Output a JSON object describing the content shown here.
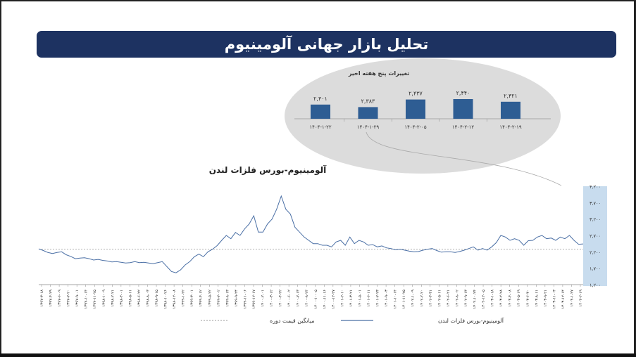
{
  "banner": {
    "title": "تحلیل بازار جهانی آلومینیوم"
  },
  "inset_title": "تغییرات پنج هفته اخیر",
  "chart_title": "آلومینیوم-بورس فلزات لندن",
  "legend": {
    "series_label": "آلومینیوم-بورس فلزات لندن",
    "average_label": "میانگین قیمت دوره"
  },
  "colors": {
    "banner": "#1d3261",
    "line": "#4a6fa5",
    "bar": "#2e5d93",
    "inset_bg": "#dcdcdc",
    "axis_band": "#c8dcee"
  },
  "chart_data": [
    {
      "type": "bar",
      "title": "تغییرات پنج هفته اخیر",
      "categories": [
        "۱۴۰۴-۱-۲۲",
        "۱۴۰۴-۱-۲۹",
        "۱۴۰۴-۲-۰۵",
        "۱۴۰۴-۲-۱۲",
        "۱۴۰۴-۲-۱۹"
      ],
      "values": [
        2401,
        2383,
        2437,
        2440,
        2421
      ],
      "value_labels": [
        "۲,۴۰۱",
        "۲,۳۸۳",
        "۲,۴۳۷",
        "۲,۴۴۰",
        "۲,۴۲۱"
      ]
    },
    {
      "type": "line",
      "title": "آلومینیوم-بورس فلزات لندن",
      "ylim": [
        1200,
        4200
      ],
      "y_ticks": [
        "۱,۲۰۰",
        "۱,۷۰۰",
        "۲,۲۰۰",
        "۲,۷۰۰",
        "۳,۲۰۰",
        "۳,۷۰۰",
        "۴,۲۰۰"
      ],
      "x_ticks": [
        "۱۳۹۷-۳-۱۸",
        "۱۳۹۷-۴-۲۹",
        "۱۳۹۷-۶-۰۹",
        "۱۳۹۷-۷-۲۰",
        "۱۳۹۷-۹-۰۱",
        "۱۳۹۷-۱۰-۱۴",
        "۱۳۹۷-۱۱-۲۵",
        "۱۳۹۸-۱-۰۹",
        "۱۳۹۸-۲-۲۱",
        "۱۳۹۸-۴-۰۱",
        "۱۳۹۸-۵-۱۱",
        "۱۳۹۸-۶-۲۲",
        "۱۳۹۸-۸-۰۳",
        "۱۳۹۸-۹-۱۵",
        "۱۳۹۸-۱۰-۲۶",
        "۱۳۹۸-۱۲-۰۸",
        "۱۳۹۹-۱-۲۲",
        "۱۳۹۹-۳-۰۱",
        "۱۳۹۹-۴-۱۲",
        "۱۳۹۹-۵-۲۲",
        "۱۳۹۹-۷-۰۲",
        "۱۳۹۹-۸-۱۳",
        "۱۳۹۹-۹-۲۴",
        "۱۳۹۹-۱۱-۰۶",
        "۱۳۹۹-۱۲-۱۷",
        "۱۴۰۰-۲-۰۱",
        "۱۴۰۰-۳-۱۲",
        "۱۴۰۰-۴-۲۲",
        "۱۴۰۰-۶-۰۲",
        "۱۴۰۰-۷-۱۳",
        "۱۴۰۰-۸-۲۴",
        "۱۴۰۰-۱۰-۰۵",
        "۱۴۰۰-۱۱-۱۶",
        "۱۴۰۰-۱۲-۲۷",
        "۱۴۰۱-۲-۱۰",
        "۱۴۰۱-۳-۲۱",
        "۱۴۰۱-۵-۰۱",
        "۱۴۰۱-۶-۱۱",
        "۱۴۰۱-۷-۲۳",
        "۱۴۰۱-۹-۰۳",
        "۱۴۰۱-۱۰-۱۴",
        "۱۴۰۱-۱۱-۲۵",
        "۱۴۰۲-۱-۰۹",
        "۱۴۰۲-۲-۲۰",
        "۱۴۰۲-۳-۳۱",
        "۱۴۰۲-۵-۱۱",
        "۱۴۰۲-۶-۲۱",
        "۱۴۰۲-۸-۰۲",
        "۱۴۰۲-۹-۱۳",
        "۱۴۰۲-۱۰-۲۴",
        "۱۴۰۲-۱۲-۰۵",
        "۱۴۰۳-۱-۱۸",
        "۱۴۰۳-۲-۲۸",
        "۱۴۰۳-۴-۰۸",
        "۱۴۰۳-۵-۱۹",
        "۱۴۰۳-۶-۳۰",
        "۱۴۰۳-۸-۱۱",
        "۱۴۰۳-۹-۲۱",
        "۱۴۰۳-۱۱-۰۳",
        "۱۴۰۳-۱۲-۱۴",
        "۱۴۰۴-۱-۲۷",
        "۱۴۰۴-۲-۱۹"
      ],
      "series": [
        {
          "name": "آلومینیوم-بورس فلزات لندن",
          "values": [
            2290,
            2240,
            2180,
            2150,
            2180,
            2200,
            2110,
            2060,
            1990,
            2010,
            2020,
            1990,
            1950,
            1970,
            1940,
            1920,
            1890,
            1900,
            1880,
            1860,
            1870,
            1900,
            1870,
            1880,
            1860,
            1840,
            1870,
            1900,
            1750,
            1600,
            1560,
            1650,
            1800,
            1900,
            2050,
            2130,
            2050,
            2200,
            2280,
            2390,
            2550,
            2700,
            2600,
            2790,
            2700,
            2900,
            3050,
            3300,
            2800,
            2800,
            3050,
            3200,
            3500,
            3900,
            3500,
            3350,
            2950,
            2800,
            2650,
            2550,
            2450,
            2450,
            2400,
            2400,
            2350,
            2500,
            2550,
            2400,
            2650,
            2450,
            2550,
            2500,
            2400,
            2420,
            2350,
            2380,
            2320,
            2300,
            2260,
            2280,
            2250,
            2220,
            2200,
            2210,
            2250,
            2280,
            2300,
            2240,
            2190,
            2200,
            2200,
            2180,
            2210,
            2250,
            2300,
            2350,
            2250,
            2300,
            2250,
            2350,
            2480,
            2700,
            2650,
            2550,
            2600,
            2550,
            2400,
            2540,
            2550,
            2650,
            2700,
            2600,
            2620,
            2550,
            2650,
            2600,
            2700,
            2550,
            2430,
            2440
          ]
        },
        {
          "name": "میانگین قیمت دوره",
          "values": [
            2280
          ]
        }
      ]
    }
  ]
}
